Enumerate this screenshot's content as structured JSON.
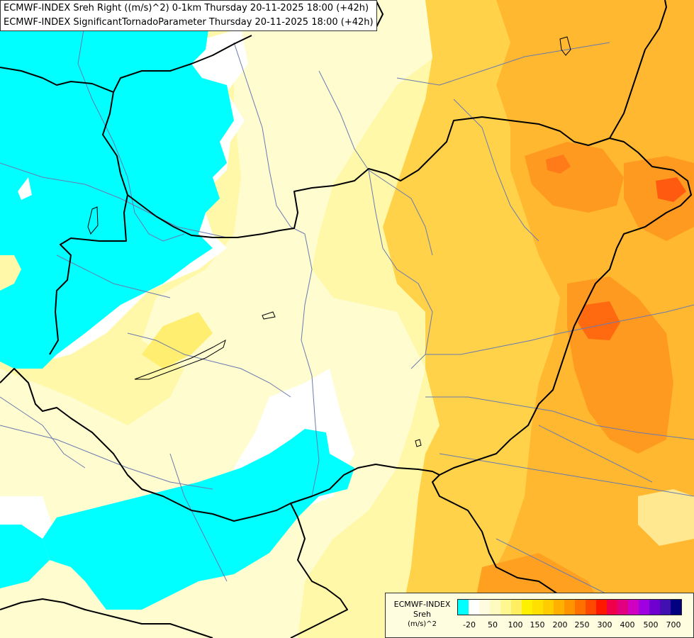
{
  "title": {
    "line1": "ECMWF-INDEX Sreh Right ((m/s)^2) 0-1km Thursday 20-11-2025 18:00 (+42h)",
    "line2": "ECMWF-INDEX SignificantTornadoParameter Thursday 20-11-2025 18:00 (+42h)"
  },
  "legend": {
    "label_line1": "ECMWF-INDEX",
    "label_line2": "Sreh",
    "label_line3": "(m/s)^2",
    "colors": [
      "#00ffff",
      "#ffffff",
      "#fffbe0",
      "#fffac0",
      "#fff890",
      "#ffef60",
      "#fff000",
      "#ffe000",
      "#ffcc00",
      "#ffb000",
      "#ff9400",
      "#ff7000",
      "#ff4800",
      "#ff1800",
      "#f0004a",
      "#e00080",
      "#d000c0",
      "#a000e0",
      "#7000d0",
      "#4010b0",
      "#000080"
    ],
    "ticks": [
      "-20",
      "50",
      "100",
      "150",
      "200",
      "250",
      "300",
      "400",
      "500",
      "700"
    ]
  },
  "colors": {
    "negative_shear": "#00ffff",
    "border": "#000000",
    "river": "#6a7ab0"
  }
}
